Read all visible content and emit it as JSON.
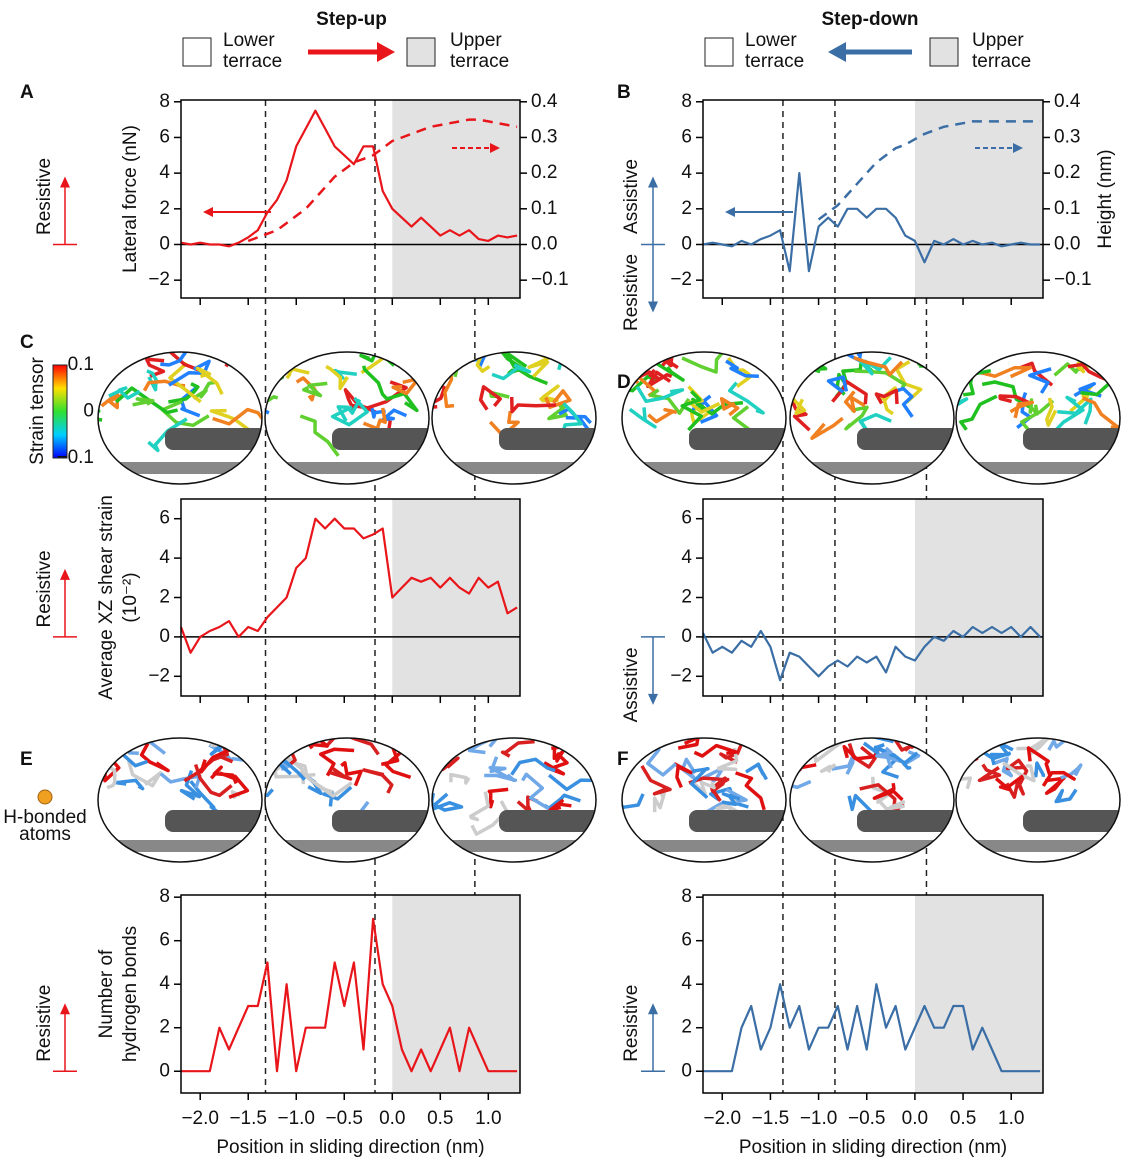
{
  "header": {
    "step_up": {
      "title": "Step-up",
      "from": [
        "Lower",
        "terrace"
      ],
      "to": [
        "Upper",
        "terrace"
      ],
      "color": "#e8161b"
    },
    "step_down": {
      "title": "Step-down",
      "from": [
        "Lower",
        "terrace"
      ],
      "to": [
        "Upper",
        "terrace"
      ],
      "color": "#3a6ea5"
    }
  },
  "chart_data": [
    {
      "type": "line",
      "panel": "A",
      "y_label": [
        "Lateral force (nN)"
      ],
      "x": [
        -2.2,
        -2.1,
        -2,
        -1.9,
        -1.8,
        -1.7,
        -1.6,
        -1.5,
        -1.4,
        -1.3,
        -1.2,
        -1.1,
        -1,
        -0.9,
        -0.8,
        -0.7,
        -0.6,
        -0.5,
        -0.4,
        -0.3,
        -0.2,
        -0.1,
        0,
        0.1,
        0.2,
        0.3,
        0.4,
        0.5,
        0.6,
        0.7,
        0.8,
        0.9,
        1,
        1.1,
        1.2,
        1.3
      ],
      "series": [
        {
          "color": "#e8161b",
          "values": [
            0.1,
            0,
            0.1,
            0,
            0,
            -0.1,
            0.1,
            0.4,
            0.8,
            1.8,
            2.5,
            3.6,
            5.5,
            6.5,
            7.5,
            6.5,
            5.5,
            5,
            4.5,
            5.5,
            5.5,
            3,
            2,
            1.5,
            1,
            1.5,
            1,
            0.5,
            0.8,
            0.5,
            0.8,
            0.3,
            0.2,
            0.5,
            0.4,
            0.5
          ]
        },
        {
          "color": "#e8161b",
          "axis": "y2",
          "dashed": true,
          "values": [
            null,
            null,
            null,
            null,
            null,
            null,
            null,
            0.01,
            0.02,
            0.03,
            0.04,
            0.06,
            0.08,
            0.1,
            0.13,
            0.16,
            0.19,
            0.21,
            0.23,
            0.24,
            0.25,
            0.27,
            0.29,
            0.3,
            0.31,
            0.32,
            0.33,
            0.335,
            0.34,
            0.345,
            0.35,
            0.35,
            0.345,
            0.34,
            0.335,
            0.33
          ]
        }
      ],
      "xlim": [
        -2.2,
        1.33
      ],
      "xticks": [
        -2,
        -1.5,
        -1,
        -0.5,
        0,
        0.5,
        1
      ],
      "xtick_labels": false,
      "ylim": [
        -3,
        8.1
      ],
      "yticks": [
        {
          "value": -2,
          "label": "−2"
        },
        0,
        2,
        4,
        6,
        8
      ],
      "y2lim": [
        -0.15,
        0.405
      ],
      "y2ticks": [
        {
          "value": -0.1,
          "label": "−0.1"
        },
        {
          "value": 0,
          "label": "0.0"
        },
        0.1,
        0.2,
        0.3,
        0.4
      ],
      "shade_from": 0,
      "shade_color": "#e2e2e2",
      "zero_line": true,
      "vlines": [
        -1.32,
        -0.18,
        0.86
      ],
      "side_labels": [
        {
          "text": "Resistive",
          "direction": "up"
        }
      ]
    },
    {
      "type": "line",
      "panel": "B",
      "y2_label": "Height (nm)",
      "x": [
        -2.2,
        -2.1,
        -2,
        -1.9,
        -1.8,
        -1.7,
        -1.6,
        -1.5,
        -1.4,
        -1.3,
        -1.2,
        -1.1,
        -1,
        -0.9,
        -0.8,
        -0.7,
        -0.6,
        -0.5,
        -0.4,
        -0.3,
        -0.2,
        -0.1,
        0,
        0.1,
        0.2,
        0.3,
        0.4,
        0.5,
        0.6,
        0.7,
        0.8,
        0.9,
        1,
        1.1,
        1.2,
        1.3
      ],
      "series": [
        {
          "color": "#3a6ea5",
          "values": [
            0,
            0.1,
            0,
            -0.1,
            0.2,
            0,
            0.3,
            0.5,
            0.8,
            -1.5,
            4,
            -1.5,
            1,
            1.5,
            1,
            2,
            2,
            1.5,
            2,
            2,
            1.5,
            0.5,
            0.2,
            -1,
            0.2,
            0,
            0.3,
            0,
            0.2,
            0,
            0.1,
            -0.1,
            0,
            0.1,
            0,
            0
          ]
        },
        {
          "color": "#3a6ea5",
          "axis": "y2",
          "dashed": true,
          "values": [
            null,
            null,
            null,
            null,
            null,
            null,
            null,
            null,
            null,
            null,
            null,
            null,
            0.07,
            0.09,
            0.11,
            0.14,
            0.17,
            0.2,
            0.23,
            0.25,
            0.27,
            0.28,
            0.295,
            0.31,
            0.32,
            0.33,
            0.335,
            0.34,
            0.345,
            0.345,
            0.345,
            0.345,
            0.345,
            0.345,
            0.345,
            0.345
          ]
        }
      ],
      "xlim": [
        -2.2,
        1.33
      ],
      "xticks": [
        -2,
        -1.5,
        -1,
        -0.5,
        0,
        0.5,
        1
      ],
      "xtick_labels": false,
      "ylim": [
        -3,
        8.1
      ],
      "yticks": [
        {
          "value": -2,
          "label": "−2"
        },
        0,
        2,
        4,
        6,
        8
      ],
      "y2lim": [
        -0.15,
        0.405
      ],
      "y2ticks": [
        {
          "value": -0.1,
          "label": "−0.1"
        },
        {
          "value": 0,
          "label": "0.0"
        },
        0.1,
        0.2,
        0.3,
        0.4
      ],
      "shade_from": 0,
      "shade_color": "#e2e2e2",
      "zero_line": true,
      "vlines": [
        -1.37,
        -0.83,
        0.12
      ],
      "side_labels": [
        {
          "text": "Assistive",
          "direction": "up"
        },
        {
          "text": "Resistive",
          "direction": "down"
        }
      ]
    },
    {
      "type": "line",
      "panel": "C",
      "y_label": [
        "Average XZ shear strain",
        "(10⁻²)"
      ],
      "colorbar": {
        "label": "Strain tensor",
        "lim": [
          -0.1,
          0.1
        ],
        "ticks": [
          0.1,
          0,
          {
            "value": -0.1,
            "label": "−0.1"
          }
        ]
      },
      "x": [
        -2.2,
        -2.1,
        -2,
        -1.9,
        -1.8,
        -1.7,
        -1.6,
        -1.5,
        -1.4,
        -1.3,
        -1.2,
        -1.1,
        -1,
        -0.9,
        -0.8,
        -0.7,
        -0.6,
        -0.5,
        -0.4,
        -0.3,
        -0.2,
        -0.1,
        0,
        0.1,
        0.2,
        0.3,
        0.4,
        0.5,
        0.6,
        0.7,
        0.8,
        0.9,
        1,
        1.1,
        1.2,
        1.3
      ],
      "series": [
        {
          "color": "#e8161b",
          "values": [
            0.5,
            -0.8,
            0,
            0.3,
            0.5,
            0.8,
            0,
            0.5,
            0.3,
            1,
            1.5,
            2,
            3.5,
            4,
            6,
            5.5,
            6,
            5.5,
            5.5,
            5,
            5.2,
            5.5,
            2,
            2.5,
            3,
            2.8,
            3,
            2.5,
            3,
            2.5,
            2.2,
            3,
            2.5,
            2.8,
            1.2,
            1.5
          ]
        }
      ],
      "xlim": [
        -2.2,
        1.33
      ],
      "xticks": [
        -2,
        -1.5,
        -1,
        -0.5,
        0,
        0.5,
        1
      ],
      "xtick_labels": false,
      "ylim": [
        -3,
        7
      ],
      "yticks": [
        {
          "value": -2,
          "label": "−2"
        },
        0,
        2,
        4,
        6
      ],
      "shade_from": 0,
      "shade_color": "#e2e2e2",
      "zero_line": true,
      "side_labels": [
        {
          "text": "Resistive",
          "direction": "up"
        }
      ]
    },
    {
      "type": "line",
      "panel": "D",
      "x": [
        -2.2,
        -2.1,
        -2,
        -1.9,
        -1.8,
        -1.7,
        -1.6,
        -1.5,
        -1.4,
        -1.3,
        -1.2,
        -1.1,
        -1,
        -0.9,
        -0.8,
        -0.7,
        -0.6,
        -0.5,
        -0.4,
        -0.3,
        -0.2,
        -0.1,
        0,
        0.1,
        0.2,
        0.3,
        0.4,
        0.5,
        0.6,
        0.7,
        0.8,
        0.9,
        1,
        1.1,
        1.2,
        1.3
      ],
      "series": [
        {
          "color": "#3a6ea5",
          "values": [
            0.2,
            -0.8,
            -0.5,
            -0.8,
            -0.2,
            -0.5,
            0.3,
            -0.5,
            -2.2,
            -0.8,
            -1,
            -1.5,
            -2,
            -1.5,
            -1.2,
            -1.5,
            -1,
            -1.3,
            -1,
            -1.8,
            -0.5,
            -1,
            -1.2,
            -0.5,
            0,
            -0.2,
            0.3,
            0,
            0.5,
            0.2,
            0.5,
            0.2,
            0.5,
            0,
            0.5,
            0
          ]
        }
      ],
      "xlim": [
        -2.2,
        1.33
      ],
      "xticks": [
        -2,
        -1.5,
        -1,
        -0.5,
        0,
        0.5,
        1
      ],
      "xtick_labels": false,
      "ylim": [
        -3,
        7
      ],
      "yticks": [
        {
          "value": -2,
          "label": "−2"
        },
        0,
        2,
        4,
        6
      ],
      "shade_from": 0,
      "shade_color": "#e2e2e2",
      "zero_line": true,
      "side_labels": [
        {
          "text": "Assistive",
          "direction": "down"
        }
      ]
    },
    {
      "type": "line",
      "panel": "E",
      "y_label": [
        "Number of",
        "hydrogen bonds"
      ],
      "x_label": "Position in sliding direction (nm)",
      "marker_legend": {
        "text": [
          "H-bonded",
          "atoms"
        ],
        "color": "#f0a020"
      },
      "x": [
        -2.2,
        -2.1,
        -2,
        -1.9,
        -1.8,
        -1.7,
        -1.6,
        -1.5,
        -1.4,
        -1.3,
        -1.2,
        -1.1,
        -1,
        -0.9,
        -0.8,
        -0.7,
        -0.6,
        -0.5,
        -0.4,
        -0.3,
        -0.2,
        -0.1,
        0,
        0.1,
        0.2,
        0.3,
        0.4,
        0.5,
        0.6,
        0.7,
        0.8,
        0.9,
        1,
        1.1,
        1.2,
        1.3
      ],
      "series": [
        {
          "color": "#e8161b",
          "values": [
            0,
            0,
            0,
            0,
            2,
            1,
            2,
            3,
            3,
            5,
            0,
            4,
            0,
            2,
            2,
            2,
            5,
            3,
            5,
            1,
            7,
            4,
            3,
            1,
            0,
            1,
            0,
            1,
            2,
            0,
            2,
            1,
            0,
            0,
            0,
            0
          ]
        }
      ],
      "xlim": [
        -2.2,
        1.33
      ],
      "xticks": [
        {
          "value": -2,
          "label": "−2.0"
        },
        {
          "value": -1.5,
          "label": "−1.5"
        },
        {
          "value": -1,
          "label": "−1.0"
        },
        {
          "value": -0.5,
          "label": "−0.5"
        },
        {
          "value": 0,
          "label": "0.0"
        },
        0.5,
        {
          "value": 1,
          "label": "1.0"
        }
      ],
      "ylim": [
        -1,
        8.1
      ],
      "yticks": [
        0,
        2,
        4,
        6,
        8
      ],
      "shade_from": 0,
      "shade_color": "#e2e2e2",
      "zero_line": false,
      "side_labels": [
        {
          "text": "Resistive",
          "direction": "up"
        }
      ]
    },
    {
      "type": "line",
      "panel": "F",
      "x_label": "Position in sliding direction (nm)",
      "x": [
        -2.2,
        -2.1,
        -2,
        -1.9,
        -1.8,
        -1.7,
        -1.6,
        -1.5,
        -1.4,
        -1.3,
        -1.2,
        -1.1,
        -1,
        -0.9,
        -0.8,
        -0.7,
        -0.6,
        -0.5,
        -0.4,
        -0.3,
        -0.2,
        -0.1,
        0,
        0.1,
        0.2,
        0.3,
        0.4,
        0.5,
        0.6,
        0.7,
        0.8,
        0.9,
        1,
        1.1,
        1.2,
        1.3
      ],
      "series": [
        {
          "color": "#3a6ea5",
          "values": [
            0,
            0,
            0,
            0,
            2,
            3,
            1,
            2,
            4,
            2,
            3,
            1,
            2,
            2,
            3,
            1,
            3,
            1,
            4,
            2,
            3,
            1,
            2,
            3,
            2,
            2,
            3,
            3,
            1,
            2,
            1,
            0,
            0,
            0,
            0,
            0
          ]
        }
      ],
      "xlim": [
        -2.2,
        1.33
      ],
      "xticks": [
        {
          "value": -2,
          "label": "−2.0"
        },
        {
          "value": -1.5,
          "label": "−1.5"
        },
        {
          "value": -1,
          "label": "−1.0"
        },
        {
          "value": -0.5,
          "label": "−0.5"
        },
        {
          "value": 0,
          "label": "0.0"
        },
        0.5,
        {
          "value": 1,
          "label": "1.0"
        }
      ],
      "ylim": [
        -1,
        8.1
      ],
      "yticks": [
        0,
        2,
        4,
        6,
        8
      ],
      "shade_from": 0,
      "shade_color": "#e2e2e2",
      "zero_line": false,
      "side_labels": [
        {
          "text": "Resistive",
          "direction": "up"
        }
      ]
    }
  ]
}
